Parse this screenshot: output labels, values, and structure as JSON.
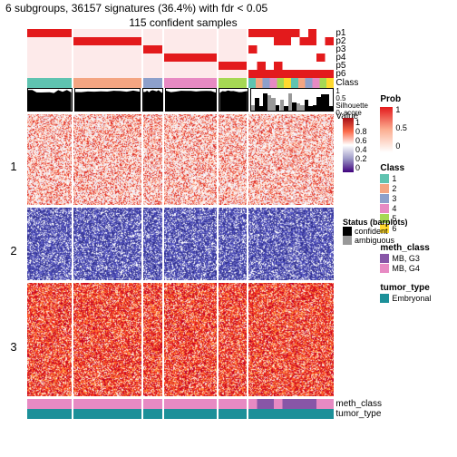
{
  "title": "6 subgroups, 36157 signatures (36.4%) with fdr < 0.05",
  "subtitle": "115 confident samples",
  "p_labels": [
    "p1",
    "p2",
    "p3",
    "p4",
    "p5",
    "p6"
  ],
  "class_label": "Class",
  "silhouette_label": "Silhouette score",
  "value_label": "Value",
  "meth_class_label": "meth_class",
  "tumor_type_label": "tumor_type",
  "row_groups": [
    "1",
    "2",
    "3"
  ],
  "columns": {
    "count": 6,
    "widths": [
      50,
      75,
      22,
      58,
      32,
      95
    ],
    "class_colors": [
      "#5fc3b0",
      "#f4a582",
      "#8da0cb",
      "#e78ac3",
      "#a6d854",
      "#ffd92f"
    ]
  },
  "p_tracks": {
    "note": "diagonal red blocks per subgroup",
    "active_color": "#e31a1c",
    "inactive_color": "#ffffff",
    "faint_color": "#fdeaea"
  },
  "silhouette": {
    "bg": "#000000",
    "ambiguous": "#999999",
    "axis": [
      0,
      0.5,
      1
    ],
    "col6_mixed": true
  },
  "heatmap": {
    "rows": {
      "1": 100,
      "2": 80,
      "3": 125
    },
    "section1_colors": [
      "#fee5d9",
      "#fc9272",
      "#de2d26",
      "#fff",
      "#e8e0f0"
    ],
    "section2_colors": [
      "#3f3f9e",
      "#5050c4",
      "#2c2c8a",
      "#8080d0",
      "#ffffff"
    ],
    "section3_colors": [
      "#fc4e2a",
      "#e31a1c",
      "#fd8d3c",
      "#fee5d9",
      "#bd0026"
    ]
  },
  "bottom": {
    "meth_colors": [
      "#e78ac3",
      "#e78ac3",
      "#e78ac3",
      "#e78ac3",
      "#e78ac3",
      "#8856a7"
    ],
    "tumor_color": "#1c9099"
  },
  "legends": {
    "value": {
      "ticks": [
        "1",
        "0.8",
        "0.6",
        "0.4",
        "0.2",
        "0"
      ],
      "gradient": "linear-gradient(to bottom,#a50f15,#fb6a4a,#ffffff,#9e9ac8,#3f007d)"
    },
    "prob": {
      "title": "Prob",
      "ticks": [
        "1",
        "0.5",
        "0"
      ],
      "gradient": "linear-gradient(to bottom,#e31a1c,#fcae91,#ffffff)"
    },
    "status": {
      "title": "Status (barplots)",
      "items": [
        {
          "label": "confident",
          "color": "#000000"
        },
        {
          "label": "ambiguous",
          "color": "#999999"
        }
      ]
    },
    "class": {
      "title": "Class",
      "items": [
        {
          "label": "1",
          "color": "#5fc3b0"
        },
        {
          "label": "2",
          "color": "#f4a582"
        },
        {
          "label": "3",
          "color": "#8da0cb"
        },
        {
          "label": "4",
          "color": "#e78ac3"
        },
        {
          "label": "5",
          "color": "#a6d854"
        },
        {
          "label": "6",
          "color": "#ffd92f"
        }
      ]
    },
    "meth_class": {
      "title": "meth_class",
      "items": [
        {
          "label": "MB, G3",
          "color": "#8856a7"
        },
        {
          "label": "MB, G4",
          "color": "#e78ac3"
        }
      ]
    },
    "tumor_type": {
      "title": "tumor_type",
      "items": [
        {
          "label": "Embryonal",
          "color": "#1c9099"
        }
      ]
    }
  }
}
